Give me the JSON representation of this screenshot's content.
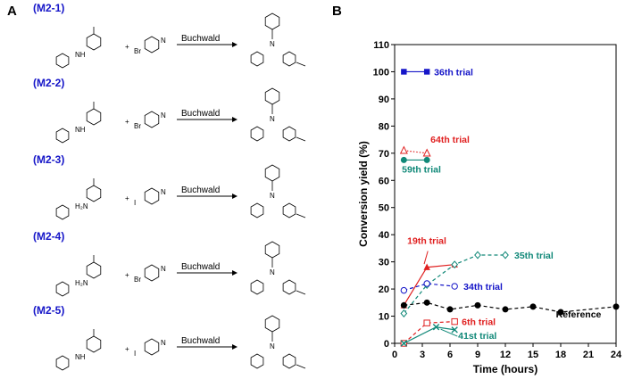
{
  "panel_a": {
    "letter": "A",
    "reagent_label": "Buchwald",
    "reactions": [
      {
        "id": "(M2-1)",
        "reagent_halide": "Br",
        "amine_label": "NH"
      },
      {
        "id": "(M2-2)",
        "reagent_halide": "Br",
        "amine_label": "NH"
      },
      {
        "id": "(M2-3)",
        "reagent_halide": "I",
        "amine_label": "H₂N"
      },
      {
        "id": "(M2-4)",
        "reagent_halide": "Br",
        "amine_label": "H₂N"
      },
      {
        "id": "(M2-5)",
        "reagent_halide": "I",
        "amine_label": "NH"
      }
    ],
    "atoms": {
      "nitrogen": "N",
      "plus": "+"
    }
  },
  "panel_b": {
    "letter": "B"
  },
  "chart_data": {
    "type": "line",
    "xlabel": "Time (hours)",
    "ylabel": "Conversion yield (%)",
    "xlim": [
      0,
      24
    ],
    "ylim": [
      0,
      110
    ],
    "xticks": [
      0,
      3,
      6,
      9,
      12,
      15,
      18,
      21,
      24
    ],
    "yticks": [
      0,
      10,
      20,
      30,
      40,
      50,
      60,
      70,
      80,
      90,
      100,
      110
    ],
    "series": [
      {
        "name": "36th trial",
        "color": "#1515c8",
        "marker": "square-filled",
        "dash": "solid",
        "x": [
          1,
          3.5
        ],
        "y": [
          100,
          100
        ]
      },
      {
        "name": "64th trial",
        "color": "#e02020",
        "marker": "triangle-open",
        "dash": "dotted",
        "x": [
          1,
          3.5
        ],
        "y": [
          71,
          70
        ]
      },
      {
        "name": "59th trial",
        "color": "#108878",
        "marker": "circle-filled",
        "dash": "solid",
        "x": [
          1,
          3.5
        ],
        "y": [
          67.5,
          67.5
        ]
      },
      {
        "name": "19th trial",
        "color": "#e02020",
        "marker": "triangle-filled",
        "dash": "solid",
        "x": [
          1,
          3.5,
          6.5
        ],
        "y": [
          14,
          28,
          29
        ]
      },
      {
        "name": "35th trial",
        "color": "#108878",
        "marker": "diamond-open",
        "dash": "dashed",
        "x": [
          1,
          3.5,
          6.5,
          9,
          12
        ],
        "y": [
          11,
          21.5,
          29,
          32.5,
          32.5
        ]
      },
      {
        "name": "34th trial",
        "color": "#1515c8",
        "marker": "circle-open",
        "dash": "dashed",
        "x": [
          1,
          3.5,
          6.5
        ],
        "y": [
          19.5,
          22,
          21
        ]
      },
      {
        "name": "Reference",
        "color": "#000000",
        "marker": "circle-filled",
        "dash": "dashed",
        "x": [
          1,
          3.5,
          6,
          9,
          12,
          15,
          18,
          24
        ],
        "y": [
          14,
          15,
          12.5,
          14,
          12.5,
          13.5,
          11.5,
          13.5
        ]
      },
      {
        "name": "6th trial",
        "color": "#e02020",
        "marker": "square-open",
        "dash": "dashed",
        "x": [
          1,
          3.5,
          6.5
        ],
        "y": [
          0,
          7.5,
          8
        ]
      },
      {
        "name": "41st trial",
        "color": "#108878",
        "marker": "x",
        "dash": "solid",
        "x": [
          1,
          4.5,
          6.5
        ],
        "y": [
          0,
          6,
          5
        ]
      }
    ]
  }
}
